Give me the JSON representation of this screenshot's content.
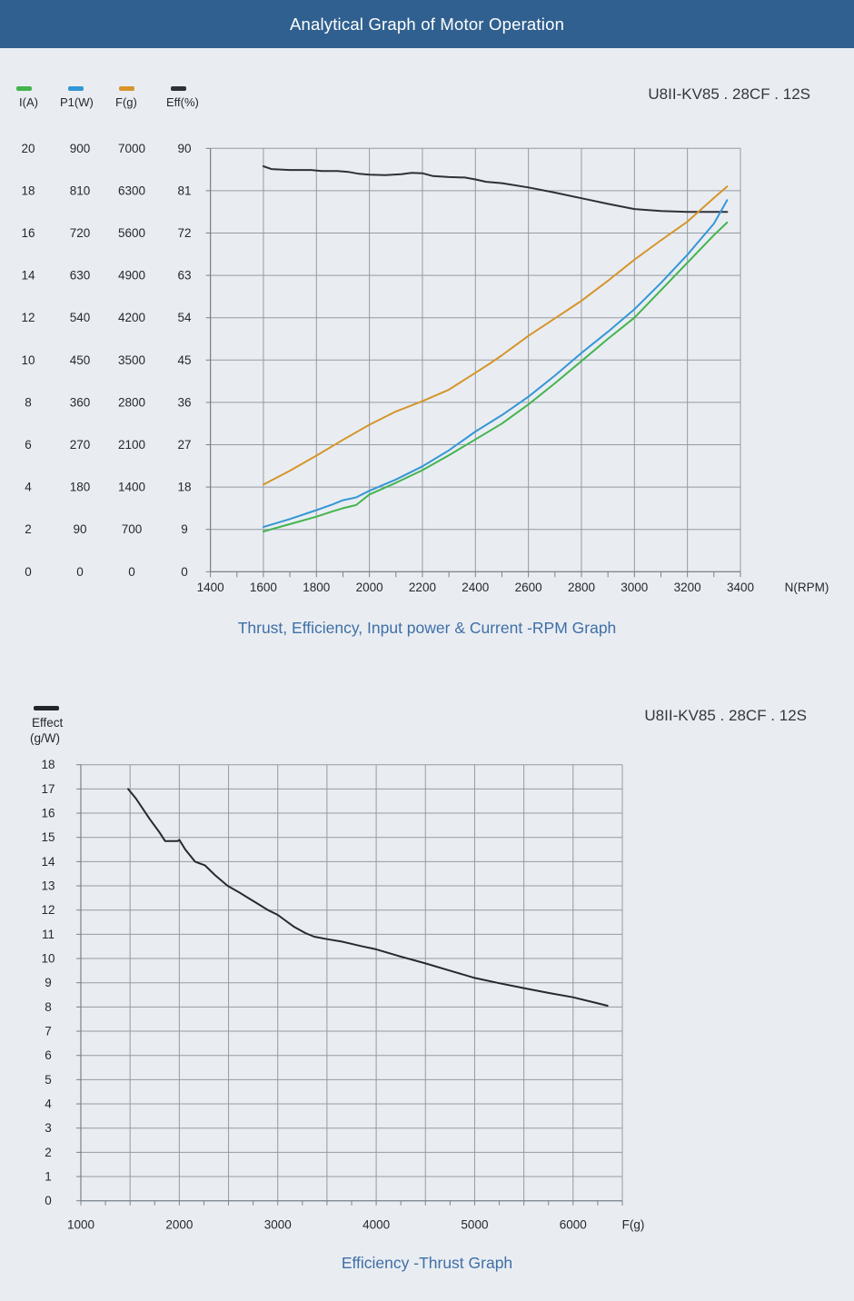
{
  "header": {
    "title": "Analytical Graph of Motor Operation"
  },
  "colors": {
    "header_bg": "#30608f",
    "page_bg": "#e9edf2",
    "grid": "#949ba3",
    "axis": "#7a818a",
    "tick_text": "#25292e",
    "title_text": "#3f6fa6"
  },
  "chart_data": [
    {
      "type": "line",
      "title": "Thrust, Efficiency, Input power & Current -RPM Graph",
      "model_label": "U8II-KV85 . 28CF . 12S",
      "xlabel": "N(RPM)",
      "x_range": [
        1400,
        3400
      ],
      "x_ticks": [
        1400,
        1600,
        1800,
        2000,
        2200,
        2400,
        2600,
        2800,
        3000,
        3200,
        3400
      ],
      "x_minor_step": 100,
      "grid": true,
      "legend_position": "top-left",
      "axes": [
        {
          "name": "I(A)",
          "max": 20,
          "ticks": [
            20,
            18,
            16,
            14,
            12,
            10,
            8,
            6,
            4,
            2,
            0
          ]
        },
        {
          "name": "P1(W)",
          "max": 900,
          "ticks": [
            900,
            810,
            720,
            630,
            540,
            450,
            360,
            270,
            180,
            90,
            0
          ]
        },
        {
          "name": "F(g)",
          "max": 7000,
          "ticks": [
            7000,
            6300,
            5600,
            4900,
            4200,
            3500,
            2800,
            2100,
            1400,
            700,
            0
          ]
        },
        {
          "name": "Eff(%)",
          "max": 90,
          "ticks": [
            90,
            81,
            72,
            63,
            54,
            45,
            36,
            27,
            18,
            9,
            0
          ]
        }
      ],
      "series": [
        {
          "name": "I(A)",
          "axis": 0,
          "color": "#44b44e",
          "points": [
            [
              1600,
              1.9
            ],
            [
              1700,
              2.25
            ],
            [
              1800,
              2.6
            ],
            [
              1860,
              2.85
            ],
            [
              1900,
              3.0
            ],
            [
              1950,
              3.15
            ],
            [
              2000,
              3.65
            ],
            [
              2100,
              4.2
            ],
            [
              2200,
              4.8
            ],
            [
              2300,
              5.5
            ],
            [
              2400,
              6.25
            ],
            [
              2500,
              7.0
            ],
            [
              2600,
              7.9
            ],
            [
              2700,
              8.9
            ],
            [
              2800,
              9.95
            ],
            [
              2900,
              11.0
            ],
            [
              3000,
              12.0
            ],
            [
              3100,
              13.3
            ],
            [
              3200,
              14.6
            ],
            [
              3300,
              15.9
            ],
            [
              3350,
              16.5
            ]
          ]
        },
        {
          "name": "P1(W)",
          "axis": 1,
          "color": "#3596d5",
          "points": [
            [
              1600,
              95
            ],
            [
              1700,
              112
            ],
            [
              1800,
              131
            ],
            [
              1860,
              143
            ],
            [
              1900,
              152
            ],
            [
              1950,
              158
            ],
            [
              2000,
              172
            ],
            [
              2100,
              196
            ],
            [
              2200,
              224
            ],
            [
              2300,
              258
            ],
            [
              2400,
              298
            ],
            [
              2500,
              333
            ],
            [
              2600,
              372
            ],
            [
              2700,
              417
            ],
            [
              2800,
              465
            ],
            [
              2900,
              510
            ],
            [
              3000,
              558
            ],
            [
              3100,
              614
            ],
            [
              3200,
              674
            ],
            [
              3300,
              740
            ],
            [
              3350,
              790
            ]
          ]
        },
        {
          "name": "F(g)",
          "axis": 2,
          "color": "#d6952a",
          "points": [
            [
              1600,
              1440
            ],
            [
              1700,
              1670
            ],
            [
              1800,
              1920
            ],
            [
              1900,
              2180
            ],
            [
              2000,
              2430
            ],
            [
              2100,
              2650
            ],
            [
              2200,
              2820
            ],
            [
              2300,
              3010
            ],
            [
              2400,
              3290
            ],
            [
              2450,
              3430
            ],
            [
              2500,
              3580
            ],
            [
              2600,
              3900
            ],
            [
              2700,
              4190
            ],
            [
              2800,
              4480
            ],
            [
              2900,
              4810
            ],
            [
              3000,
              5160
            ],
            [
              3100,
              5480
            ],
            [
              3200,
              5790
            ],
            [
              3300,
              6180
            ],
            [
              3350,
              6370
            ]
          ]
        },
        {
          "name": "Eff(%)",
          "axis": 3,
          "color": "#2e3135",
          "points": [
            [
              1600,
              86.2
            ],
            [
              1630,
              85.6
            ],
            [
              1700,
              85.4
            ],
            [
              1780,
              85.4
            ],
            [
              1820,
              85.2
            ],
            [
              1880,
              85.2
            ],
            [
              1920,
              85.0
            ],
            [
              1960,
              84.6
            ],
            [
              2000,
              84.4
            ],
            [
              2060,
              84.3
            ],
            [
              2120,
              84.5
            ],
            [
              2160,
              84.8
            ],
            [
              2200,
              84.7
            ],
            [
              2240,
              84.1
            ],
            [
              2300,
              83.9
            ],
            [
              2360,
              83.8
            ],
            [
              2400,
              83.4
            ],
            [
              2440,
              82.9
            ],
            [
              2500,
              82.6
            ],
            [
              2600,
              81.7
            ],
            [
              2700,
              80.6
            ],
            [
              2800,
              79.4
            ],
            [
              2900,
              78.2
            ],
            [
              3000,
              77.1
            ],
            [
              3100,
              76.7
            ],
            [
              3200,
              76.5
            ],
            [
              3300,
              76.5
            ],
            [
              3350,
              76.5
            ]
          ]
        }
      ]
    },
    {
      "type": "line",
      "title": "Efficiency -Thrust Graph",
      "model_label": "U8II-KV85 . 28CF . 12S",
      "xlabel": "F(g)",
      "legend": {
        "name": "Effect",
        "unit": "(g/W)",
        "color": "#222529"
      },
      "x_range": [
        1000,
        6500
      ],
      "x_ticks": [
        1000,
        2000,
        3000,
        4000,
        5000,
        6000
      ],
      "x_grid_step": 500,
      "x_minor_step": 250,
      "y_range": [
        0,
        18
      ],
      "y_ticks": [
        18,
        17,
        16,
        15,
        14,
        13,
        12,
        11,
        10,
        9,
        8,
        7,
        6,
        5,
        4,
        3,
        2,
        1,
        0
      ],
      "grid": true,
      "series": [
        {
          "name": "Effect(g/W)",
          "color": "#26292e",
          "points": [
            [
              1480,
              17.0
            ],
            [
              1560,
              16.6
            ],
            [
              1700,
              15.75
            ],
            [
              1800,
              15.2
            ],
            [
              1855,
              14.85
            ],
            [
              1985,
              14.85
            ],
            [
              2000,
              14.9
            ],
            [
              2060,
              14.5
            ],
            [
              2160,
              14.0
            ],
            [
              2260,
              13.85
            ],
            [
              2360,
              13.45
            ],
            [
              2490,
              13.0
            ],
            [
              2600,
              12.75
            ],
            [
              2700,
              12.5
            ],
            [
              2800,
              12.25
            ],
            [
              2900,
              12.0
            ],
            [
              3000,
              11.8
            ],
            [
              3100,
              11.5
            ],
            [
              3170,
              11.3
            ],
            [
              3280,
              11.05
            ],
            [
              3370,
              10.9
            ],
            [
              3500,
              10.8
            ],
            [
              3650,
              10.7
            ],
            [
              3860,
              10.5
            ],
            [
              4000,
              10.38
            ],
            [
              4250,
              10.08
            ],
            [
              4500,
              9.8
            ],
            [
              4750,
              9.5
            ],
            [
              5000,
              9.2
            ],
            [
              5250,
              8.98
            ],
            [
              5500,
              8.78
            ],
            [
              5750,
              8.58
            ],
            [
              6000,
              8.4
            ],
            [
              6200,
              8.2
            ],
            [
              6350,
              8.05
            ]
          ]
        }
      ]
    }
  ]
}
